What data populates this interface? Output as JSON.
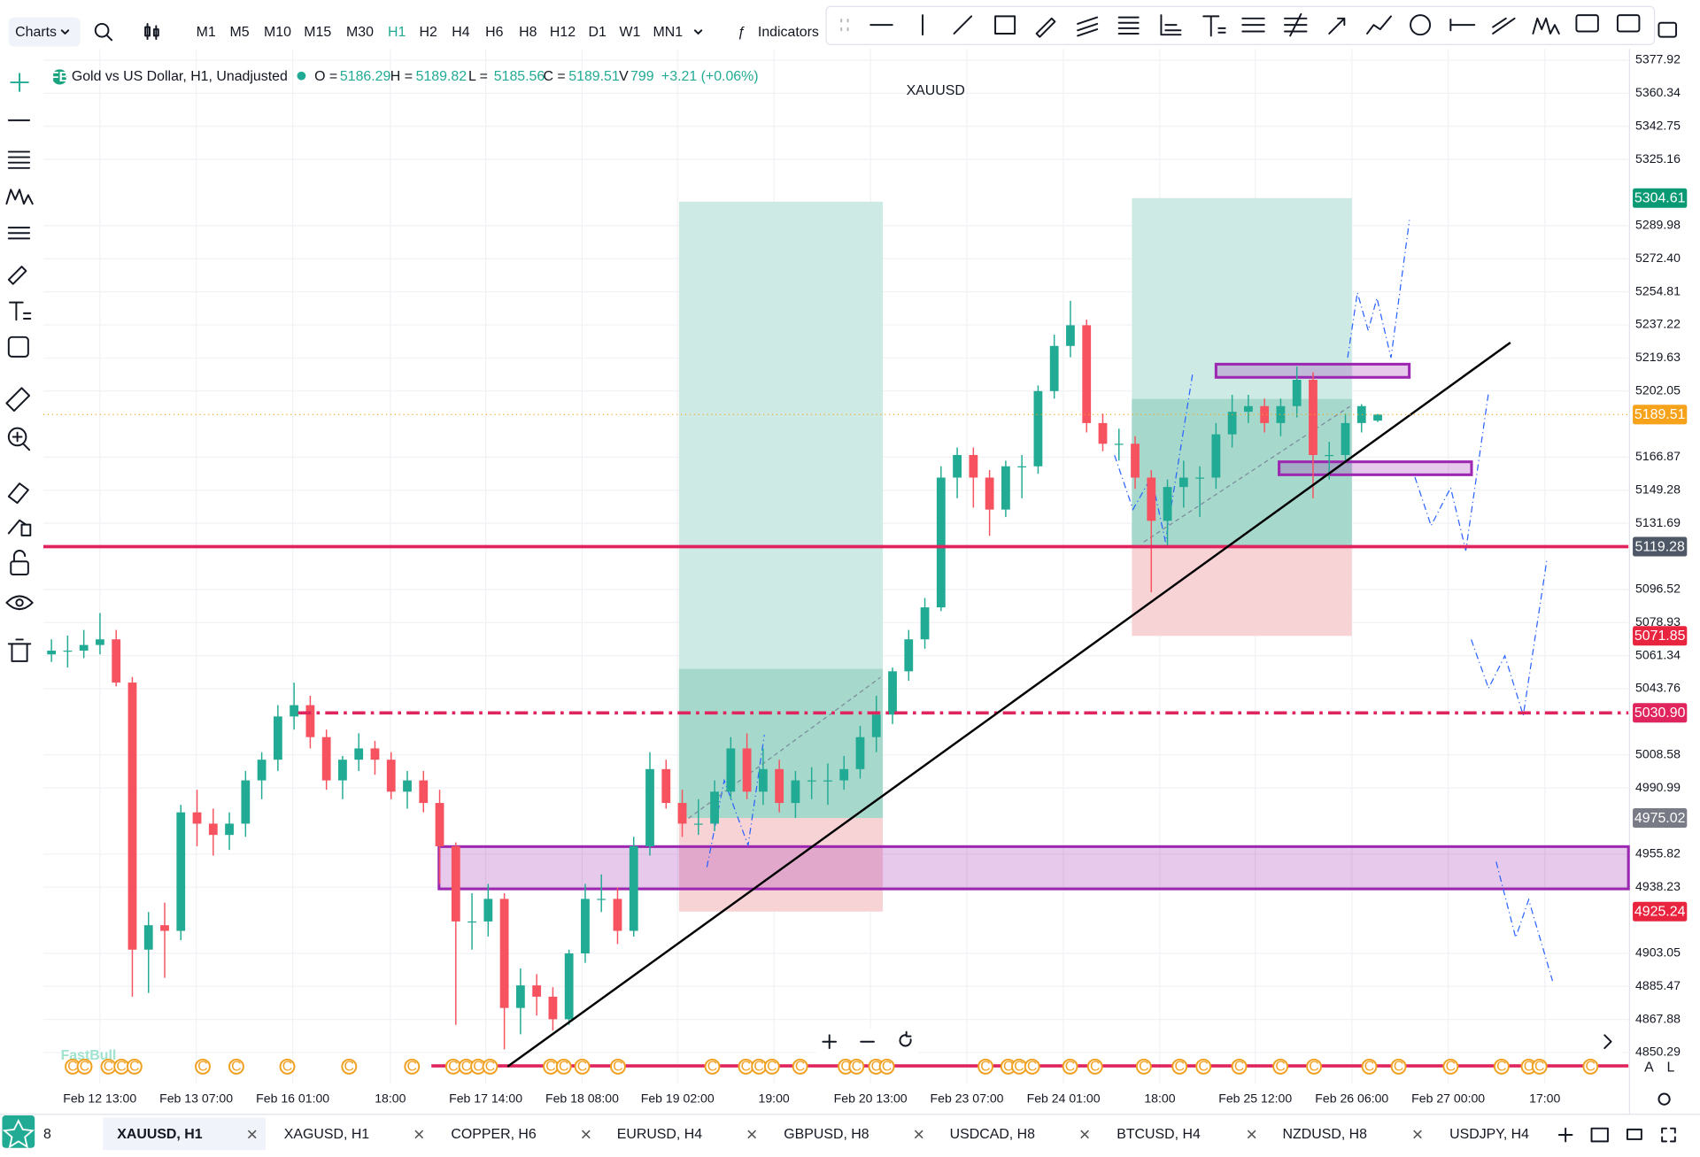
{
  "toolbar": {
    "menu": "Charts",
    "timeframes": [
      "M1",
      "M5",
      "M10",
      "M15",
      "M30",
      "H1",
      "H2",
      "H4",
      "H6",
      "H8",
      "H12",
      "D1",
      "W1",
      "MN1"
    ],
    "active_timeframe": 5,
    "indicators": "Indicators"
  },
  "legend": {
    "badge": "FB",
    "title": "Gold vs US Dollar, H1, Unadjusted",
    "open_label": "O =",
    "high_label": "H =",
    "low_label": "L =",
    "close_label": "C =",
    "volume_label": "V",
    "volume": 799,
    "change": "+3.21 (+0.06%)"
  },
  "watermark": "FastBull",
  "event_icon": "C",
  "chart_data": {
    "type": "candlestick",
    "title": "XAUUSD",
    "up_color": "#22ab94",
    "down_color": "#f7525f",
    "grid": true,
    "xlim": [
      0,
      98
    ],
    "ylim": [
      4833.6,
      5384.0
    ],
    "xticks": [
      {
        "value": 3.49,
        "label": "Feb 12 13:00"
      },
      {
        "value": 9.45,
        "label": "Feb 13 07:00"
      },
      {
        "value": 15.42,
        "label": "Feb 16 01:00"
      },
      {
        "value": 21.45,
        "label": "18:00"
      },
      {
        "value": 27.35,
        "label": "Feb 17 14:00"
      },
      {
        "value": 33.31,
        "label": "Feb 18 08:00"
      },
      {
        "value": 39.21,
        "label": "Feb 19 02:00"
      },
      {
        "value": 45.17,
        "label": "19:00"
      },
      {
        "value": 51.14,
        "label": "Feb 20 13:00"
      },
      {
        "value": 57.1,
        "label": "Feb 23 07:00"
      },
      {
        "value": 63.07,
        "label": "Feb 24 01:00"
      },
      {
        "value": 69.03,
        "label": "18:00"
      },
      {
        "value": 74.93,
        "label": "Feb 25 12:00"
      },
      {
        "value": 80.9,
        "label": "Feb 26 06:00"
      },
      {
        "value": 86.86,
        "label": "Feb 27 00:00"
      },
      {
        "value": 92.83,
        "label": "17:00"
      }
    ],
    "yticks": [
      5377.92,
      5360.34,
      5342.75,
      5325.16,
      5289.98,
      {
        "value": 5272.4,
        "label": "5272.40"
      },
      5254.81,
      5237.22,
      5219.63,
      5202.05,
      5166.87,
      5149.28,
      5131.69,
      5096.52,
      5078.93,
      5061.34,
      5043.76,
      5008.58,
      4990.99,
      4955.82,
      4938.23,
      4903.05,
      4885.47,
      4867.88,
      4850.29
    ],
    "ohlc": [
      [
        5062,
        5070,
        5058,
        5064
      ],
      [
        5064,
        5072,
        5055,
        5064
      ],
      [
        5064,
        5075,
        5060,
        5067
      ],
      [
        5067,
        5084,
        5062,
        5070
      ],
      [
        5070,
        5075,
        5045,
        5047
      ],
      [
        5047,
        5050,
        4880,
        4905
      ],
      [
        4905,
        4925,
        4882,
        4918
      ],
      [
        4918,
        4930,
        4890,
        4915
      ],
      [
        4915,
        4982,
        4910,
        4978
      ],
      [
        4978,
        4990,
        4960,
        4972
      ],
      [
        4972,
        4980,
        4955,
        4966
      ],
      [
        4966,
        4978,
        4958,
        4972
      ],
      [
        4972,
        5000,
        4965,
        4995
      ],
      [
        4995,
        5010,
        4985,
        5006
      ],
      [
        5006,
        5035,
        5000,
        5029
      ],
      [
        5029,
        5047,
        5022,
        5035
      ],
      [
        5035,
        5040,
        5012,
        5018
      ],
      [
        5018,
        5022,
        4990,
        4995
      ],
      [
        4995,
        5008,
        4985,
        5006
      ],
      [
        5006,
        5020,
        5000,
        5012
      ],
      [
        5012,
        5016,
        4998,
        5006
      ],
      [
        5006,
        5010,
        4985,
        4989
      ],
      [
        4989,
        5000,
        4980,
        4995
      ],
      [
        4995,
        5000,
        4978,
        4983
      ],
      [
        4983,
        4990,
        4940,
        4960
      ],
      [
        4960,
        4962,
        4865,
        4920
      ],
      [
        4920,
        4935,
        4905,
        4920
      ],
      [
        4920,
        4940,
        4912,
        4932
      ],
      [
        4932,
        4935,
        4852,
        4874
      ],
      [
        4874,
        4895,
        4860,
        4886
      ],
      [
        4886,
        4892,
        4870,
        4880
      ],
      [
        4880,
        4885,
        4862,
        4868
      ],
      [
        4868,
        4905,
        4865,
        4903
      ],
      [
        4903,
        4940,
        4898,
        4932
      ],
      [
        4932,
        4945,
        4925,
        4932
      ],
      [
        4932,
        4938,
        4908,
        4915
      ],
      [
        4915,
        4965,
        4912,
        4960
      ],
      [
        4960,
        5010,
        4955,
        5001
      ],
      [
        5001,
        5006,
        4980,
        4983
      ],
      [
        4983,
        4990,
        4965,
        4972
      ],
      [
        4972,
        4985,
        4966,
        4972
      ],
      [
        4972,
        4995,
        4968,
        4989
      ],
      [
        4989,
        5018,
        4985,
        5012
      ],
      [
        5012,
        5020,
        4985,
        4989
      ],
      [
        4989,
        5012,
        4982,
        5001
      ],
      [
        5001,
        5006,
        4978,
        4983
      ],
      [
        4983,
        5000,
        4975,
        4995
      ],
      [
        4995,
        5002,
        4985,
        4995
      ],
      [
        4995,
        5004,
        4982,
        4995
      ],
      [
        4995,
        5008,
        4990,
        5001
      ],
      [
        5001,
        5024,
        4996,
        5018
      ],
      [
        5018,
        5040,
        5010,
        5030
      ],
      [
        5030,
        5055,
        5025,
        5053
      ],
      [
        5053,
        5075,
        5048,
        5070
      ],
      [
        5070,
        5092,
        5065,
        5087
      ],
      [
        5087,
        5162,
        5085,
        5156
      ],
      [
        5156,
        5172,
        5145,
        5168
      ],
      [
        5168,
        5172,
        5140,
        5156
      ],
      [
        5156,
        5160,
        5125,
        5139
      ],
      [
        5139,
        5165,
        5135,
        5162
      ],
      [
        5162,
        5168,
        5145,
        5162
      ],
      [
        5162,
        5205,
        5158,
        5202
      ],
      [
        5202,
        5232,
        5198,
        5226
      ],
      [
        5226,
        5250,
        5220,
        5237
      ],
      [
        5237,
        5240,
        5180,
        5185
      ],
      [
        5185,
        5190,
        5170,
        5174
      ],
      [
        5174,
        5182,
        5165,
        5174
      ],
      [
        5174,
        5178,
        5150,
        5156
      ],
      [
        5156,
        5160,
        5095,
        5133
      ],
      [
        5133,
        5155,
        5120,
        5151
      ],
      [
        5151,
        5165,
        5140,
        5156
      ],
      [
        5156,
        5162,
        5135,
        5156
      ],
      [
        5156,
        5185,
        5150,
        5179
      ],
      [
        5179,
        5200,
        5172,
        5191
      ],
      [
        5191,
        5200,
        5185,
        5194
      ],
      [
        5194,
        5198,
        5180,
        5185
      ],
      [
        5185,
        5198,
        5178,
        5194
      ],
      [
        5194,
        5215,
        5188,
        5208
      ],
      [
        5208,
        5212,
        5145,
        5168
      ],
      [
        5168,
        5175,
        5155,
        5168
      ],
      [
        5168,
        5190,
        5165,
        5185
      ],
      [
        5185,
        5195,
        5180,
        5194
      ],
      [
        5186.29,
        5189.82,
        5185.56,
        5189.51
      ]
    ],
    "positions": [
      {
        "start": 39.3,
        "end": 51.9,
        "target": 5302.7,
        "entry": 4975.02,
        "stop": 4925.24,
        "reached": 5054.3
      },
      {
        "start": 67.3,
        "end": 80.9,
        "target": 5304.61,
        "entry": 5119.28,
        "stop": 5071.85,
        "reached": 5197.8
      }
    ],
    "zones": [
      {
        "start": 24.46,
        "end": 98,
        "top": 4959.8,
        "bottom": 4937.3,
        "color": "#9c27b0"
      },
      {
        "start": 72.5,
        "end": 84.45,
        "top": 5216.3,
        "bottom": 5209.3,
        "color": "#9c27b0"
      },
      {
        "start": 76.4,
        "end": 88.3,
        "top": 5164.4,
        "bottom": 5157.5,
        "color": "#9c27b0"
      }
    ],
    "hlines": [
      {
        "value": 5119.28,
        "start": 0,
        "style": "solid",
        "color": "#e0245e"
      },
      {
        "value": 5030.9,
        "start": 15.75,
        "style": "dashdot",
        "color": "#e0245e"
      },
      {
        "value": 4843.2,
        "start": 23.99,
        "style": "solid",
        "color": "#e0245e"
      }
    ],
    "trendline": {
      "x": [
        28.7,
        90.7
      ],
      "y": [
        4842.8,
        5227.8
      ],
      "color": "#000000"
    },
    "price_labels": [
      {
        "value": 5304.61,
        "color": "#0a9a73"
      },
      {
        "value": 5189.51,
        "color": "#f7a21b"
      },
      {
        "value": 5119.28,
        "color": "#4e5766"
      },
      {
        "value": 5071.85,
        "color": "#e8243f"
      },
      {
        "value": 5030.9,
        "label": "5030.90",
        "color": "#e0245e"
      },
      {
        "value": 4975.02,
        "color": "#787b86"
      },
      {
        "value": 4925.24,
        "color": "#e8243f"
      }
    ],
    "scale_buttons": [
      "A",
      "L"
    ]
  },
  "tabs": [
    {
      "label": "8"
    },
    {
      "label": "XAUUSD, H1",
      "active": true
    },
    {
      "label": "XAGUSD, H1"
    },
    {
      "label": "COPPER, H6"
    },
    {
      "label": "EURUSD, H4"
    },
    {
      "label": "GBPUSD, H8"
    },
    {
      "label": "USDCAD, H8"
    },
    {
      "label": "BTCUSD, H4"
    },
    {
      "label": "NZDUSD, H8"
    },
    {
      "label": "USDJPY, H4"
    }
  ]
}
